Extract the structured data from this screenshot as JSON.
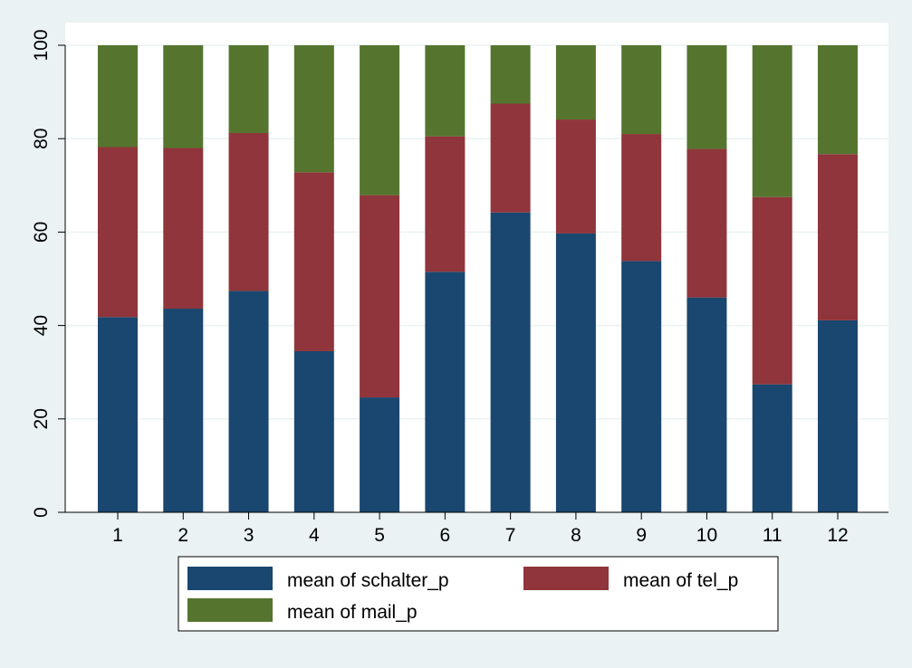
{
  "chart_data": {
    "type": "bar",
    "stacked": true,
    "categories": [
      "1",
      "2",
      "3",
      "4",
      "5",
      "6",
      "7",
      "8",
      "9",
      "10",
      "11",
      "12"
    ],
    "series": [
      {
        "name": "mean of schalter_p",
        "color": "#1a476f",
        "values": [
          41.8,
          43.6,
          47.4,
          34.5,
          24.6,
          51.5,
          64.2,
          59.7,
          53.8,
          46.0,
          27.4,
          41.1
        ]
      },
      {
        "name": "mean of tel_p",
        "color": "#90353b",
        "values": [
          36.4,
          34.4,
          33.8,
          38.3,
          43.3,
          29.0,
          23.3,
          24.4,
          27.2,
          31.8,
          40.1,
          35.6
        ]
      },
      {
        "name": "mean of mail_p",
        "color": "#55752f",
        "values": [
          21.8,
          22.0,
          18.8,
          27.2,
          32.1,
          19.5,
          12.5,
          15.9,
          19.0,
          22.2,
          32.5,
          23.3
        ]
      }
    ],
    "ylim": [
      0,
      100
    ],
    "yticks": [
      "0",
      "20",
      "40",
      "60",
      "80",
      "100"
    ],
    "xlabel": "",
    "ylabel": "",
    "grid": true,
    "legend": {
      "placement": "bottom",
      "columns": 2
    }
  }
}
